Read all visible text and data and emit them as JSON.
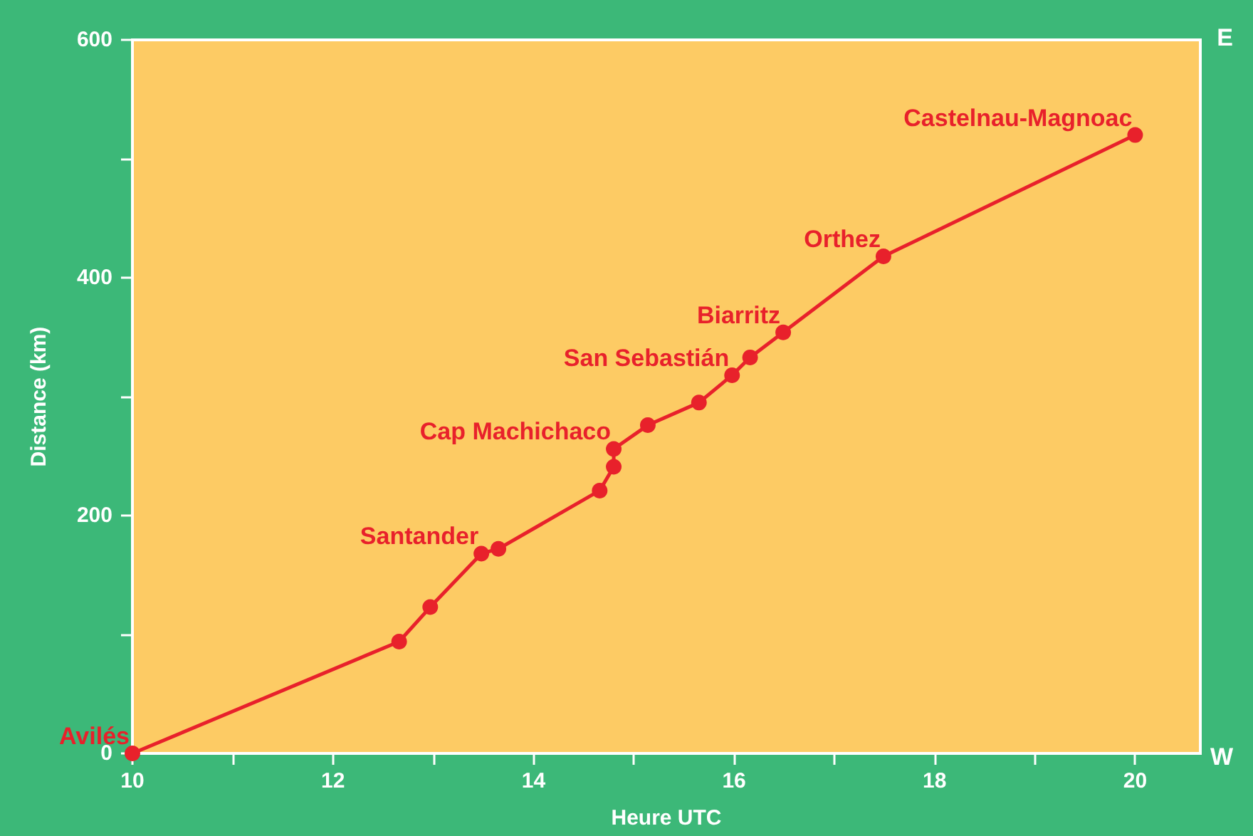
{
  "chart_data": {
    "type": "line",
    "xlabel": "Heure UTC",
    "ylabel": "Distance (km)",
    "x": [
      10,
      12.66,
      12.97,
      13.48,
      13.65,
      14.66,
      14.8,
      14.8,
      15.14,
      15.65,
      15.98,
      16.16,
      16.49,
      17.49,
      20
    ],
    "series": [
      {
        "color": "#e8212b",
        "values": [
          0,
          94,
          123,
          168,
          172,
          221,
          241,
          256,
          276,
          295,
          318,
          333,
          354,
          418,
          520
        ]
      }
    ],
    "xlim": [
      10,
      20.65
    ],
    "xticks": [
      10,
      {
        "value": 11,
        "label": null
      },
      12,
      {
        "value": 13,
        "label": null
      },
      14,
      {
        "value": 15,
        "label": null
      },
      16,
      {
        "value": 17,
        "label": null
      },
      18,
      {
        "value": 19,
        "label": null
      },
      20
    ],
    "ylim": [
      0,
      600
    ],
    "yticks": [
      0,
      {
        "value": 100,
        "label": null
      },
      200,
      {
        "value": 300,
        "label": null
      },
      400,
      {
        "value": 500,
        "label": null
      },
      600
    ],
    "annotations": [
      "E",
      "W",
      {
        "text": "Avilés",
        "x": 10,
        "y": 0
      },
      {
        "text": "Santander",
        "x": 13.48,
        "y": 168
      },
      {
        "text": "Cap Machichaco",
        "x": 14.8,
        "y": 256
      },
      {
        "text": "San Sebastián",
        "x": 15.98,
        "y": 318
      },
      {
        "text": "Biarritz",
        "x": 16.49,
        "y": 354
      },
      {
        "text": "Orthez",
        "x": 17.49,
        "y": 418
      },
      {
        "text": "Castelnau-Magnoac",
        "x": 20,
        "y": 520
      }
    ],
    "grid": false,
    "marker": "circle",
    "line_style": "solid"
  }
}
